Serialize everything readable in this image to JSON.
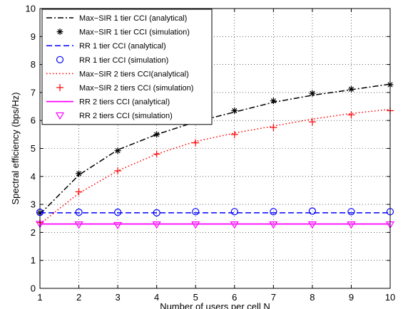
{
  "chart_data": {
    "type": "line",
    "xlabel": "Number of users per cell N",
    "ylabel": "Spectral efficiency (bps/Hz)",
    "xlim": [
      1,
      10
    ],
    "ylim": [
      0,
      10
    ],
    "xticks": [
      "1",
      "2",
      "3",
      "4",
      "5",
      "6",
      "7",
      "8",
      "9",
      "10"
    ],
    "yticks": [
      "0",
      "1",
      "2",
      "3",
      "4",
      "5",
      "6",
      "7",
      "8",
      "9",
      "10"
    ],
    "grid": true,
    "legend_position": "top-left",
    "series": [
      {
        "name": "Max−SIR 1 tier CCI (analytical)",
        "style": "dashdot",
        "marker": "none",
        "color": "#000000",
        "x": [
          1,
          2,
          3,
          4,
          5,
          6,
          7,
          8,
          9,
          10
        ],
        "y": [
          2.65,
          4.05,
          4.95,
          5.5,
          5.95,
          6.3,
          6.65,
          6.9,
          7.1,
          7.3
        ]
      },
      {
        "name": "Max−SIR 1 tier CCI (simulation)",
        "style": "none",
        "marker": "asterisk",
        "color": "#000000",
        "x": [
          1,
          2,
          3,
          4,
          5,
          6,
          7,
          8,
          9,
          10
        ],
        "y": [
          2.7,
          4.1,
          4.92,
          5.5,
          6.0,
          6.35,
          6.7,
          6.97,
          7.12,
          7.28
        ]
      },
      {
        "name": "RR  1 tier CCI (analytical)",
        "style": "dashed",
        "marker": "none",
        "color": "#0000ff",
        "x": [
          1,
          2,
          3,
          4,
          5,
          6,
          7,
          8,
          9,
          10
        ],
        "y": [
          2.7,
          2.7,
          2.7,
          2.7,
          2.7,
          2.7,
          2.7,
          2.7,
          2.7,
          2.7
        ]
      },
      {
        "name": "RR  1 tier CCI (simulation)",
        "style": "none",
        "marker": "circle",
        "color": "#0000ff",
        "x": [
          1,
          2,
          3,
          4,
          5,
          6,
          7,
          8,
          9,
          10
        ],
        "y": [
          2.72,
          2.72,
          2.72,
          2.7,
          2.74,
          2.74,
          2.74,
          2.76,
          2.74,
          2.74
        ]
      },
      {
        "name": "Max−SIR 2 tiers CCI(analytical)",
        "style": "dotted",
        "marker": "none",
        "color": "#ff0000",
        "x": [
          1,
          2,
          3,
          4,
          5,
          6,
          7,
          8,
          9,
          10
        ],
        "y": [
          2.3,
          3.4,
          4.2,
          4.8,
          5.25,
          5.55,
          5.8,
          6.05,
          6.25,
          6.4
        ]
      },
      {
        "name": "Max−SIR 2 tiers CCI (simulation)",
        "style": "none",
        "marker": "plus",
        "color": "#ff0000",
        "x": [
          1,
          2,
          3,
          4,
          5,
          6,
          7,
          8,
          9,
          10
        ],
        "y": [
          2.35,
          3.45,
          4.2,
          4.8,
          5.2,
          5.5,
          5.75,
          5.95,
          6.2,
          6.35
        ]
      },
      {
        "name": "RR 2 tiers CCI (analytical)",
        "style": "solid",
        "marker": "none",
        "color": "#ff00ff",
        "x": [
          1,
          2,
          3,
          4,
          5,
          6,
          7,
          8,
          9,
          10
        ],
        "y": [
          2.3,
          2.3,
          2.3,
          2.3,
          2.3,
          2.3,
          2.3,
          2.3,
          2.3,
          2.3
        ]
      },
      {
        "name": "RR 2 tiers CCI (simulation)",
        "style": "none",
        "marker": "triangle-down",
        "color": "#ff00ff",
        "x": [
          1,
          2,
          3,
          4,
          5,
          6,
          7,
          8,
          9,
          10
        ],
        "y": [
          2.3,
          2.28,
          2.26,
          2.28,
          2.28,
          2.28,
          2.28,
          2.28,
          2.28,
          2.28
        ]
      }
    ]
  }
}
